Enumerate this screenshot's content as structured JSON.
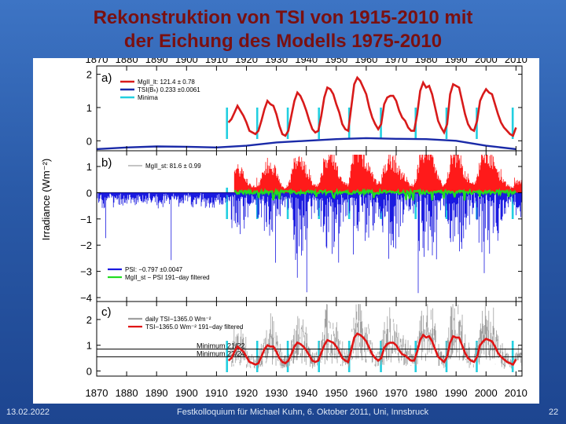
{
  "slide": {
    "title_line1": "Rekonstruktion von TSI von 1915-2010 mit",
    "title_line2": "der Eichung des Modells 1975-2010",
    "footer_date": "13.02.2022",
    "footer_center": "Festkolloquium für Michael Kuhn, 6. Oktober 2011, Uni, Innsbruck",
    "footer_page": "22",
    "background_color": "#2f63b5",
    "title_color": "#7a1010"
  },
  "chart_data": {
    "type": "line",
    "ylabel": "Irradiance (Wm⁻²)",
    "x_ticks": [
      "1870",
      "1880",
      "1890",
      "1900",
      "1910",
      "1920",
      "1930",
      "1940",
      "1950",
      "1960",
      "1970",
      "1980",
      "1990",
      "2000",
      "2010"
    ],
    "xlim": [
      1870,
      2012
    ],
    "minima_years": [
      1913.5,
      1923.6,
      1933.8,
      1944.2,
      1954.3,
      1964.9,
      1976.5,
      1986.8,
      1996.9,
      2008.9
    ],
    "panels": [
      {
        "label": "a)",
        "ylim": [
          -0.3,
          2.25
        ],
        "y_ticks": [
          "0",
          "1",
          "2"
        ],
        "legend": [
          "MgII_lt:  121.4  ±  0.78",
          "TSI(Bₕ) 0.233 ±0.0061",
          "Minima"
        ],
        "series": [
          {
            "name": "MgII_lt",
            "color": "#d81a1a",
            "x": [
              1914,
              1915,
              1916,
              1917,
              1918,
              1919,
              1920,
              1921,
              1922,
              1923,
              1924,
              1925,
              1926,
              1927,
              1928,
              1929,
              1930,
              1931,
              1932,
              1933,
              1934,
              1935,
              1936,
              1937,
              1938,
              1939,
              1940,
              1941,
              1942,
              1943,
              1944,
              1945,
              1946,
              1947,
              1948,
              1949,
              1950,
              1951,
              1952,
              1953,
              1954,
              1955,
              1956,
              1957,
              1958,
              1959,
              1960,
              1961,
              1962,
              1963,
              1964,
              1965,
              1966,
              1967,
              1968,
              1969,
              1970,
              1971,
              1972,
              1973,
              1974,
              1975,
              1976,
              1977,
              1978,
              1979,
              1980,
              1981,
              1982,
              1983,
              1984,
              1985,
              1986,
              1987,
              1988,
              1989,
              1990,
              1991,
              1992,
              1993,
              1994,
              1995,
              1996,
              1997,
              1998,
              1999,
              2000,
              2001,
              2002,
              2003,
              2004,
              2005,
              2006,
              2007,
              2008,
              2009,
              2010
            ],
            "y": [
              0.55,
              0.65,
              0.85,
              1.05,
              0.9,
              0.75,
              0.55,
              0.3,
              0.25,
              0.2,
              0.3,
              0.6,
              0.95,
              1.2,
              1.1,
              1.05,
              0.8,
              0.45,
              0.2,
              0.15,
              0.3,
              0.75,
              1.2,
              1.45,
              1.35,
              1.15,
              0.9,
              0.6,
              0.35,
              0.25,
              0.3,
              0.75,
              1.3,
              1.6,
              1.55,
              1.4,
              1.1,
              0.85,
              0.5,
              0.35,
              0.3,
              1.0,
              1.7,
              1.9,
              1.8,
              1.6,
              1.4,
              1.0,
              0.7,
              0.5,
              0.35,
              0.5,
              1.1,
              1.3,
              1.35,
              1.35,
              1.2,
              0.9,
              0.7,
              0.6,
              0.4,
              0.3,
              0.3,
              0.8,
              1.5,
              1.75,
              1.6,
              1.65,
              1.4,
              1.0,
              0.6,
              0.4,
              0.25,
              0.5,
              1.4,
              1.7,
              1.65,
              1.6,
              1.2,
              0.8,
              0.5,
              0.35,
              0.3,
              0.6,
              1.2,
              1.4,
              1.55,
              1.45,
              1.4,
              1.1,
              0.8,
              0.55,
              0.4,
              0.3,
              0.2,
              0.15,
              0.4
            ]
          },
          {
            "name": "TSI(Bh)",
            "color": "#1a2aa8",
            "x": [
              1870,
              1880,
              1890,
              1900,
              1910,
              1920,
              1930,
              1940,
              1950,
              1960,
              1970,
              1980,
              1990,
              2000,
              2010
            ],
            "y": [
              -0.25,
              -0.2,
              -0.17,
              -0.18,
              -0.2,
              -0.15,
              -0.05,
              0.0,
              0.05,
              0.08,
              0.06,
              0.05,
              0.0,
              -0.15,
              -0.25
            ]
          }
        ]
      },
      {
        "label": "b)",
        "ylim": [
          -4.15,
          1.6
        ],
        "y_ticks": [
          "1",
          "0",
          "−1",
          "−2",
          "−3",
          "−4"
        ],
        "legend_top": [
          "MgII_st:  81.6 ±  0.99"
        ],
        "legend_bottom": [
          "PSI: −0.797 ±0.0047",
          "MgII_st − PSI 191−day filtered"
        ],
        "series": [
          {
            "name": "PSI",
            "color": "#1a1ae0"
          },
          {
            "name": "MgII_st",
            "color": "#ff1a1a"
          },
          {
            "name": "MgII_st − PSI 191−day filtered",
            "color": "#22dd22"
          }
        ]
      },
      {
        "label": "c)",
        "ylim": [
          -0.2,
          2.7
        ],
        "y_ticks": [
          "0",
          "1",
          "2"
        ],
        "legend": [
          "daily TSI−1365.0 Wm⁻²",
          "TSI−1365.0 Wm⁻² 191−day filtered"
        ],
        "hlines": [
          {
            "label": "Minimum 21/22",
            "y": 0.85
          },
          {
            "label": "Minimum 23/24",
            "y": 0.55
          }
        ],
        "series": [
          {
            "name": "daily TSI",
            "color": "#a0a0a0"
          },
          {
            "name": "TSI filtered",
            "color": "#e01515",
            "x": [
              1914,
              1915,
              1916,
              1917,
              1918,
              1919,
              1920,
              1921,
              1922,
              1923,
              1924,
              1925,
              1926,
              1927,
              1928,
              1929,
              1930,
              1931,
              1932,
              1933,
              1934,
              1935,
              1936,
              1937,
              1938,
              1939,
              1940,
              1941,
              1942,
              1943,
              1944,
              1945,
              1946,
              1947,
              1948,
              1949,
              1950,
              1951,
              1952,
              1953,
              1954,
              1955,
              1956,
              1957,
              1958,
              1959,
              1960,
              1961,
              1962,
              1963,
              1964,
              1965,
              1966,
              1967,
              1968,
              1969,
              1970,
              1971,
              1972,
              1973,
              1974,
              1975,
              1976,
              1977,
              1978,
              1979,
              1980,
              1981,
              1982,
              1983,
              1984,
              1985,
              1986,
              1987,
              1988,
              1989,
              1990,
              1991,
              1992,
              1993,
              1994,
              1995,
              1996,
              1997,
              1998,
              1999,
              2000,
              2001,
              2002,
              2003,
              2004,
              2005,
              2006,
              2007,
              2008,
              2009,
              2010
            ],
            "y": [
              0.4,
              0.5,
              0.75,
              0.95,
              0.85,
              0.75,
              0.55,
              0.35,
              0.3,
              0.25,
              0.3,
              0.55,
              0.85,
              1.0,
              0.95,
              0.95,
              0.75,
              0.5,
              0.35,
              0.3,
              0.4,
              0.65,
              0.95,
              1.1,
              1.05,
              0.95,
              0.8,
              0.6,
              0.4,
              0.35,
              0.4,
              0.7,
              1.0,
              1.2,
              1.15,
              1.1,
              0.95,
              0.75,
              0.5,
              0.4,
              0.35,
              0.8,
              1.3,
              1.45,
              1.4,
              1.3,
              1.15,
              0.9,
              0.65,
              0.5,
              0.4,
              0.5,
              0.9,
              1.05,
              1.1,
              1.1,
              1.0,
              0.8,
              0.65,
              0.6,
              0.5,
              0.4,
              0.4,
              0.75,
              1.2,
              1.4,
              1.3,
              1.35,
              1.15,
              0.85,
              0.55,
              0.45,
              0.35,
              0.55,
              1.1,
              1.35,
              1.3,
              1.3,
              1.0,
              0.7,
              0.5,
              0.4,
              0.35,
              0.55,
              1.0,
              1.15,
              1.25,
              1.2,
              1.15,
              0.95,
              0.7,
              0.55,
              0.45,
              0.35,
              0.3,
              0.25,
              0.45
            ]
          }
        ]
      }
    ]
  }
}
